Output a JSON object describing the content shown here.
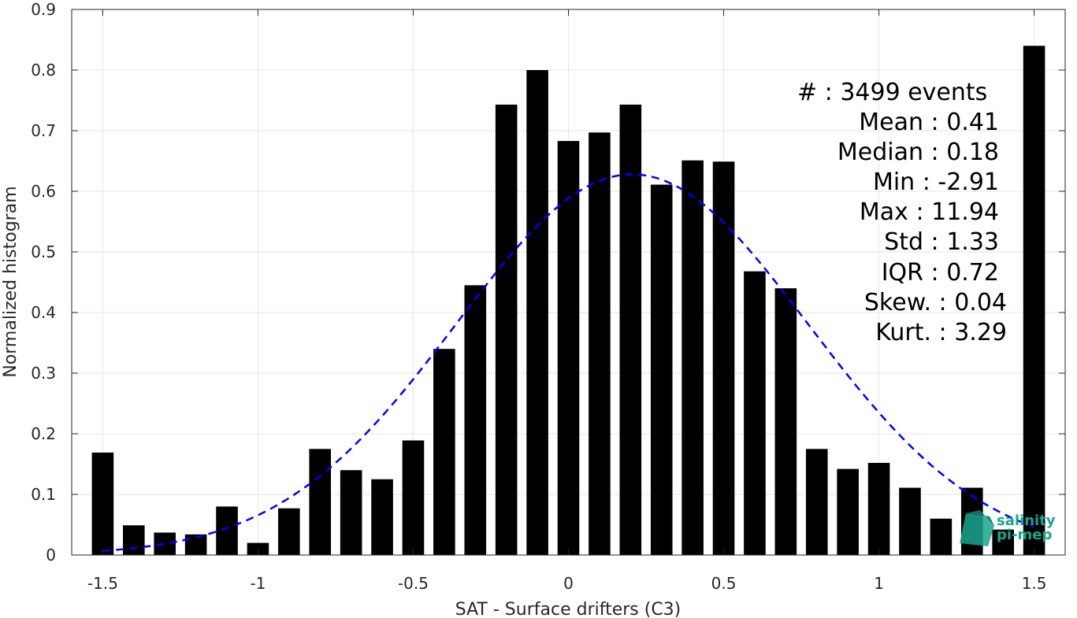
{
  "chart_data": {
    "type": "bar",
    "xlabel": "SAT - Surface drifters (C3)",
    "ylabel": "Normalized histogram",
    "xlim": [
      -1.6,
      1.6
    ],
    "ylim": [
      0,
      0.9
    ],
    "xticks": [
      -1.5,
      -1,
      -0.5,
      0,
      0.5,
      1,
      1.5
    ],
    "xtick_labels": [
      "-1.5",
      "-1",
      "-0.5",
      "0",
      "0.5",
      "1",
      "1.5"
    ],
    "yticks": [
      0,
      0.1,
      0.2,
      0.3,
      0.4,
      0.5,
      0.6,
      0.7,
      0.8,
      0.9
    ],
    "ytick_labels": [
      "0",
      "0.1",
      "0.2",
      "0.3",
      "0.4",
      "0.5",
      "0.6",
      "0.7",
      "0.8",
      "0.9"
    ],
    "grid": true,
    "bar_color": "#000000",
    "bar_width": 0.07,
    "bins": [
      -1.5,
      -1.4,
      -1.3,
      -1.2,
      -1.1,
      -1.0,
      -0.9,
      -0.8,
      -0.7,
      -0.6,
      -0.5,
      -0.4,
      -0.3,
      -0.2,
      -0.1,
      0.0,
      0.1,
      0.2,
      0.3,
      0.4,
      0.5,
      0.6,
      0.7,
      0.8,
      0.9,
      1.0,
      1.1,
      1.2,
      1.3,
      1.4,
      1.5
    ],
    "values": [
      0.169,
      0.049,
      0.037,
      0.034,
      0.08,
      0.02,
      0.077,
      0.175,
      0.14,
      0.125,
      0.189,
      0.34,
      0.445,
      0.743,
      0.8,
      0.683,
      0.697,
      0.743,
      0.611,
      0.651,
      0.649,
      0.468,
      0.44,
      0.175,
      0.142,
      0.152,
      0.111,
      0.06,
      0.111,
      0.042,
      0.84
    ],
    "fit_curve": {
      "type": "gaussian",
      "color": "#0000ff",
      "style": "dashed",
      "mean": 0.205,
      "std": 0.567,
      "peak": 0.628,
      "x_range": [
        -1.5,
        1.5
      ]
    },
    "stats": [
      "#  : 3499 events",
      "Mean : 0.41",
      "Median : 0.18",
      "Min : -2.91",
      "Max : 11.94",
      "Std : 1.33",
      "IQR : 0.72",
      "Skew. : 0.04",
      "Kurt. : 3.29"
    ],
    "logo": [
      "salinity",
      "pi-mep"
    ],
    "logo_color": "#1aa58f"
  }
}
